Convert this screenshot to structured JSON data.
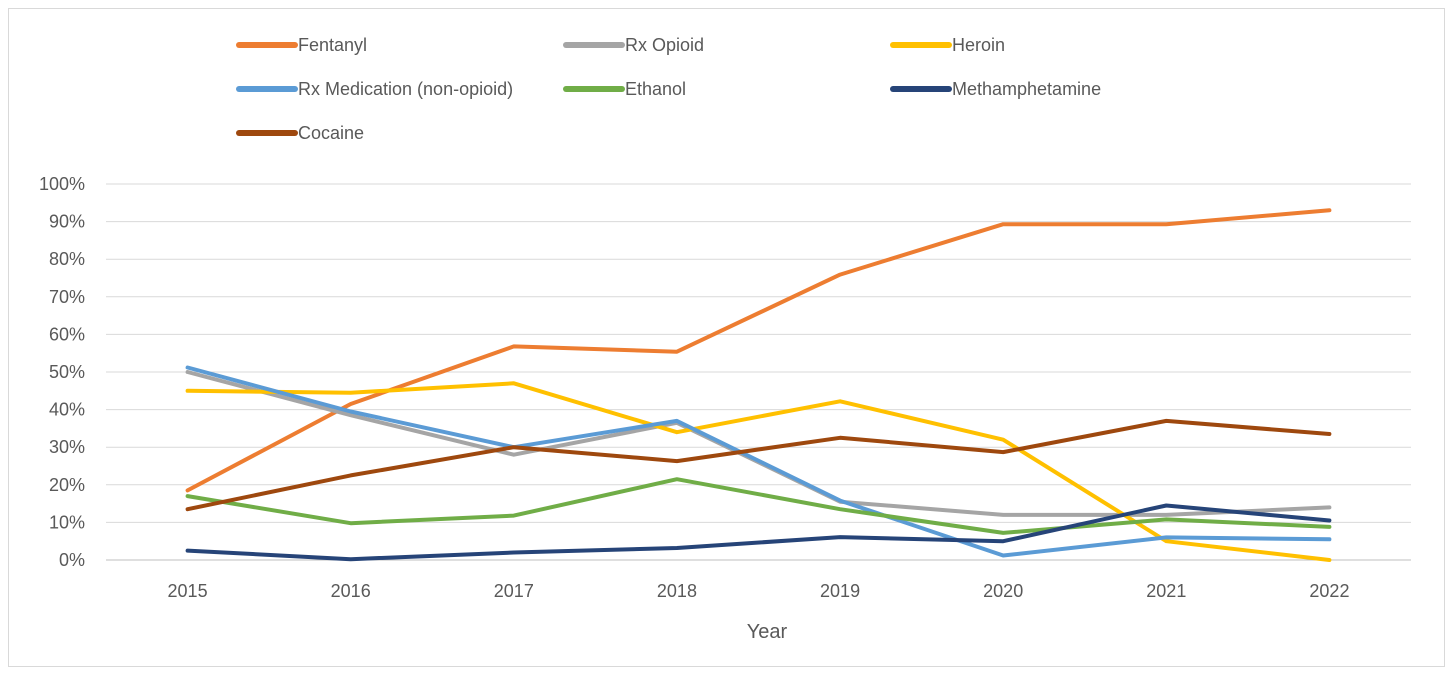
{
  "chart_data": {
    "type": "line",
    "title": "",
    "xlabel": "Year",
    "ylabel": "",
    "categories": [
      "2015",
      "2016",
      "2017",
      "2018",
      "2019",
      "2020",
      "2021",
      "2022"
    ],
    "ylim": [
      0,
      100
    ],
    "yticks": [
      "0%",
      "10%",
      "20%",
      "30%",
      "40%",
      "50%",
      "60%",
      "70%",
      "80%",
      "90%",
      "100%"
    ],
    "grid": "horizontal",
    "legend_position": "top",
    "series": [
      {
        "name": "Fentanyl",
        "color": "#ED7D31",
        "values": [
          18.5,
          41.5,
          56.8,
          55.4,
          75.9,
          89.3,
          89.3,
          93.0
        ]
      },
      {
        "name": "Rx Opioid",
        "color": "#A5A5A5",
        "values": [
          50.0,
          38.5,
          28.0,
          36.5,
          15.5,
          12.0,
          12.0,
          14.0
        ]
      },
      {
        "name": "Heroin",
        "color": "#FFC000",
        "values": [
          45.0,
          44.5,
          47.0,
          34.0,
          42.2,
          32.0,
          5.0,
          0.0
        ]
      },
      {
        "name": "Rx Medication (non-opioid)",
        "color": "#5B9BD5",
        "values": [
          51.2,
          39.5,
          30.0,
          37.0,
          15.8,
          1.2,
          6.0,
          5.5
        ]
      },
      {
        "name": "Ethanol",
        "color": "#70AD47",
        "values": [
          17.0,
          9.8,
          11.8,
          21.5,
          13.5,
          7.2,
          10.8,
          8.8
        ]
      },
      {
        "name": "Methamphetamine",
        "color": "#264478",
        "values": [
          2.5,
          0.2,
          2.0,
          3.2,
          6.1,
          5.0,
          14.5,
          10.5
        ]
      },
      {
        "name": "Cocaine",
        "color": "#9E480E",
        "values": [
          13.5,
          22.5,
          30.0,
          26.3,
          32.5,
          28.7,
          37.0,
          33.5
        ]
      }
    ]
  }
}
